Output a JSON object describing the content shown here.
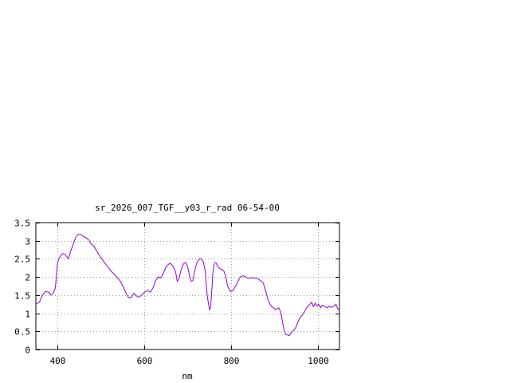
{
  "chart_data": {
    "type": "line",
    "title": "sr_2026_007_TGF__y03_r_rad 06-54-00",
    "xlabel": "nm",
    "ylabel": "",
    "xlim": [
      350,
      1050
    ],
    "ylim": [
      0,
      3.5
    ],
    "grid": true,
    "x_ticks": [
      400,
      600,
      800,
      1000
    ],
    "x_tick_labels": [
      "400",
      "600",
      "800",
      "1000"
    ],
    "y_ticks": [
      0,
      0.5,
      1,
      1.5,
      2,
      2.5,
      3,
      3.5
    ],
    "y_tick_labels": [
      "0",
      "0.5",
      "1",
      "1.5",
      "2",
      "2.5",
      "3",
      "3.5"
    ],
    "line_color": "#9400d3",
    "series": [
      {
        "x": [
          350,
          358,
          365,
          372,
          380,
          385,
          390,
          395,
          400,
          405,
          412,
          418,
          425,
          430,
          436,
          442,
          448,
          454,
          460,
          466,
          472,
          478,
          484,
          490,
          496,
          502,
          508,
          515,
          522,
          530,
          538,
          545,
          552,
          558,
          563,
          568,
          572,
          576,
          580,
          585,
          590,
          596,
          602,
          608,
          614,
          620,
          626,
          632,
          638,
          644,
          650,
          656,
          660,
          666,
          672,
          676,
          680,
          684,
          688,
          692,
          696,
          700,
          704,
          708,
          712,
          716,
          720,
          724,
          728,
          732,
          736,
          740,
          745,
          750,
          753,
          756,
          758,
          760,
          762,
          764,
          766,
          768,
          772,
          776,
          780,
          784,
          788,
          792,
          798,
          804,
          808,
          812,
          816,
          820,
          826,
          832,
          838,
          844,
          850,
          856,
          862,
          868,
          874,
          880,
          886,
          890,
          894,
          898,
          902,
          906,
          910,
          914,
          918,
          922,
          926,
          930,
          934,
          938,
          942,
          946,
          950,
          954,
          958,
          962,
          966,
          970,
          974,
          978,
          982,
          986,
          990,
          994,
          998,
          1002,
          1006,
          1010,
          1014,
          1018,
          1022,
          1026,
          1030,
          1034,
          1038,
          1042,
          1046,
          1050
        ],
        "values": [
          1.25,
          1.3,
          1.5,
          1.6,
          1.58,
          1.5,
          1.55,
          1.7,
          2.4,
          2.55,
          2.65,
          2.62,
          2.5,
          2.7,
          2.9,
          3.1,
          3.18,
          3.17,
          3.12,
          3.08,
          3.02,
          2.9,
          2.85,
          2.72,
          2.6,
          2.5,
          2.4,
          2.3,
          2.18,
          2.08,
          1.98,
          1.88,
          1.72,
          1.55,
          1.45,
          1.42,
          1.48,
          1.55,
          1.5,
          1.45,
          1.46,
          1.52,
          1.6,
          1.62,
          1.58,
          1.7,
          1.9,
          2.0,
          1.98,
          2.1,
          2.28,
          2.35,
          2.38,
          2.3,
          2.15,
          1.88,
          1.95,
          2.15,
          2.32,
          2.38,
          2.4,
          2.28,
          2.05,
          1.88,
          1.9,
          2.15,
          2.35,
          2.45,
          2.5,
          2.5,
          2.42,
          2.2,
          1.5,
          1.1,
          1.15,
          1.7,
          2.1,
          2.3,
          2.38,
          2.4,
          2.38,
          2.32,
          2.25,
          2.22,
          2.2,
          2.15,
          2.0,
          1.75,
          1.6,
          1.62,
          1.7,
          1.78,
          1.88,
          1.98,
          2.03,
          2.02,
          1.97,
          1.97,
          1.98,
          1.97,
          1.95,
          1.9,
          1.85,
          1.6,
          1.35,
          1.25,
          1.18,
          1.15,
          1.1,
          1.12,
          1.15,
          1.05,
          0.8,
          0.55,
          0.42,
          0.4,
          0.38,
          0.45,
          0.5,
          0.55,
          0.62,
          0.75,
          0.85,
          0.92,
          0.98,
          1.05,
          1.15,
          1.2,
          1.25,
          1.3,
          1.18,
          1.28,
          1.2,
          1.25,
          1.15,
          1.22,
          1.2,
          1.17,
          1.15,
          1.2,
          1.16,
          1.18,
          1.2,
          1.25,
          1.12,
          1.1
        ]
      }
    ]
  }
}
